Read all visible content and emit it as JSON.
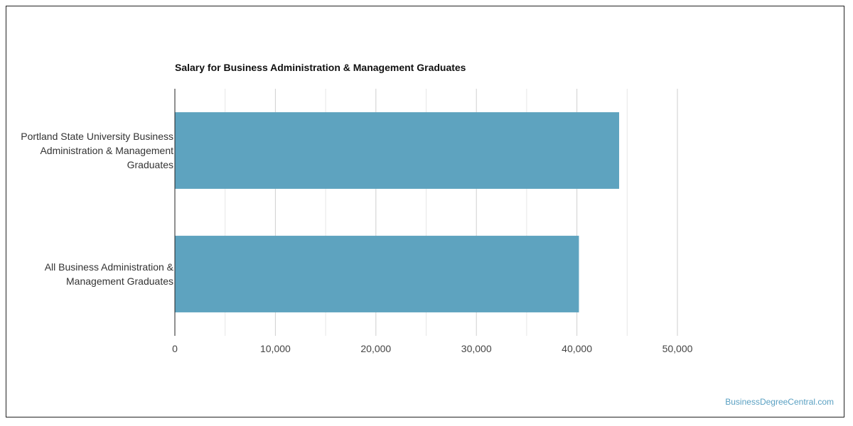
{
  "chart_data": {
    "type": "bar",
    "orientation": "horizontal",
    "title": "Salary for Business Administration & Management Graduates",
    "categories": [
      "Portland State University Business Administration & Management Graduates",
      "All Business Administration & Management Graduates"
    ],
    "category_label_lines": [
      [
        "Portland State University Business",
        "Administration & Management",
        "Graduates"
      ],
      [
        "All Business Administration &",
        "Management Graduates"
      ]
    ],
    "values": [
      44200,
      40200
    ],
    "xlim": [
      0,
      50000
    ],
    "xticks": [
      0,
      10000,
      20000,
      30000,
      40000,
      50000
    ],
    "xtick_labels": [
      "0",
      "10,000",
      "20,000",
      "30,000",
      "40,000",
      "50,000"
    ],
    "grid": true,
    "bar_color": "#5ea3bf",
    "grid_color": "#d8d8d8"
  },
  "watermark": "BusinessDegreeCentral.com"
}
